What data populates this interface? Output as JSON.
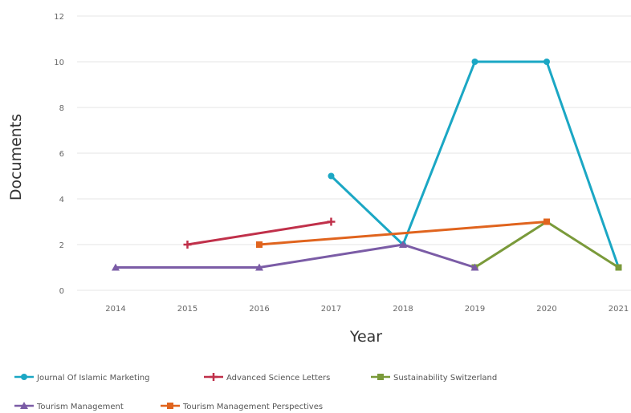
{
  "chart_data": {
    "type": "line",
    "title": "",
    "xlabel": "Year",
    "ylabel": "Documents",
    "x": [
      2014,
      2015,
      2016,
      2017,
      2018,
      2019,
      2020,
      2021
    ],
    "x_tick_labels": [
      "2014",
      "2015",
      "2016",
      "2017",
      "2018",
      "2019",
      "2020",
      "2021"
    ],
    "ylim": [
      0,
      12
    ],
    "y_ticks": [
      0,
      2,
      4,
      6,
      8,
      10,
      12
    ],
    "y_tick_labels": [
      "0",
      "2",
      "4",
      "6",
      "8",
      "10",
      "12"
    ],
    "grid": true,
    "legend_position": "bottom",
    "series": [
      {
        "name": "Journal Of Islamic Marketing",
        "color": "#1ba7c4",
        "marker": "circle",
        "points": [
          [
            2017,
            5
          ],
          [
            2018,
            2
          ],
          [
            2019,
            10
          ],
          [
            2020,
            10
          ],
          [
            2021,
            1
          ]
        ]
      },
      {
        "name": "Advanced Science Letters",
        "color": "#c0304a",
        "marker": "plus",
        "points": [
          [
            2015,
            2
          ],
          [
            2017,
            3
          ]
        ]
      },
      {
        "name": "Sustainability Switzerland",
        "color": "#7a9a3a",
        "marker": "square",
        "points": [
          [
            2019,
            1
          ],
          [
            2020,
            3
          ],
          [
            2021,
            1
          ]
        ]
      },
      {
        "name": "Tourism Management",
        "color": "#7b5ca6",
        "marker": "triangle",
        "points": [
          [
            2014,
            1
          ],
          [
            2016,
            1
          ],
          [
            2018,
            2
          ],
          [
            2019,
            1
          ]
        ]
      },
      {
        "name": "Tourism Management Perspectives",
        "color": "#e0641e",
        "marker": "square",
        "points": [
          [
            2016,
            2
          ],
          [
            2020,
            3
          ]
        ]
      }
    ]
  }
}
